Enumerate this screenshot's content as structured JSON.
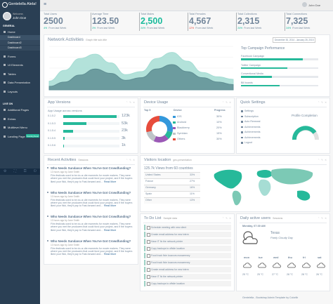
{
  "sidebar": {
    "brand": "Gentelella Alela!",
    "welcome": "Welcome,",
    "user": "John Doe",
    "badge": "Coming Soon",
    "sections": [
      {
        "title": "GENERAL",
        "items": [
          "Home",
          "Forms",
          "UI Elements",
          "Tables",
          "Data Presentation",
          "Layouts"
        ]
      },
      {
        "title": "LIVE ON",
        "items": [
          "Additional Pages",
          "Extras",
          "Multilevel Menu",
          "Landing Page"
        ]
      }
    ],
    "subitems": [
      "Dashboard",
      "Dashboard2",
      "Dashboard3"
    ]
  },
  "topbar": {
    "user": "John Doe"
  },
  "stats": [
    {
      "label": "Total Users",
      "value": "2500",
      "change": "4%",
      "note": "From last Week"
    },
    {
      "label": "Average Time",
      "value": "123.50",
      "change": "3%",
      "note": "From last Week"
    },
    {
      "label": "Total Males",
      "value": "2,500",
      "change": "34%",
      "note": "From last Week"
    },
    {
      "label": "Total Females",
      "value": "4,567",
      "change": "12%",
      "note": "From last Week"
    },
    {
      "label": "Total Collections",
      "value": "2,315",
      "change": "34%",
      "note": "From last Week"
    },
    {
      "label": "Total Connections",
      "value": "7,325",
      "change": "34%",
      "note": "From last Week"
    }
  ],
  "network": {
    "title": "Network Activities",
    "subtitle": "Graph title sub-title",
    "date_range": "December 30, 2014 - January 28, 2015",
    "chart": {
      "type": "area",
      "x": [
        0,
        1,
        2,
        3,
        4,
        5,
        6,
        7,
        8,
        9,
        10,
        11,
        12
      ],
      "xlim": [
        0,
        12
      ],
      "ylim": [
        0,
        100
      ],
      "series": [
        {
          "color": "#a6ddd4",
          "values": [
            20,
            45,
            72,
            82,
            62,
            35,
            42,
            72,
            86,
            66,
            40,
            30,
            24
          ]
        },
        {
          "color": "#5f8f94",
          "values": [
            8,
            18,
            34,
            48,
            38,
            22,
            28,
            48,
            58,
            42,
            28,
            18,
            12
          ]
        }
      ]
    },
    "campaigns": {
      "title": "Top Campaign Performance",
      "xlim": [
        0,
        100
      ],
      "color": "#26b99a",
      "items": [
        "Facebook Campaign",
        "Twitter Campaign",
        "Conventional Media",
        "Bill boards"
      ],
      "values": [
        80,
        60,
        40,
        50
      ]
    }
  },
  "app_versions": {
    "title": "App Versions",
    "subtitle": "App Usage across versions",
    "xlim": [
      0,
      130000
    ],
    "color": "#26b99a",
    "categories": [
      "0.1.5.2",
      "0.1.5.3",
      "0.1.5.4",
      "0.1.5.5",
      "0.1.5.6"
    ],
    "values": [
      123000,
      53000,
      23000,
      3000,
      1000
    ],
    "value_labels": [
      "123k",
      "53k",
      "23k",
      "3k",
      "1k"
    ]
  },
  "device_usage": {
    "title": "Device Usage",
    "headers": [
      "Top 5",
      "Device",
      "Progress"
    ],
    "chart": {
      "type": "pie",
      "categories": [
        "IOS",
        "Android",
        "Blackberry",
        "Symbian",
        "Others"
      ],
      "values": [
        30,
        10,
        20,
        15,
        30
      ],
      "value_labels": [
        "30%",
        "10%",
        "20%",
        "15%",
        "30%"
      ],
      "colors": [
        "#3498db",
        "#26b99a",
        "#9b59b6",
        "#bdc3c7",
        "#e74c3c"
      ]
    }
  },
  "quick_settings": {
    "title": "Quick Settings",
    "items": [
      "Settings",
      "Subscription",
      "Auto Renewal",
      "Achievements",
      "Achievements",
      "Achievements",
      "Logout"
    ],
    "profile": "Profile Completion"
  },
  "recent": {
    "title": "Recent Activities",
    "subtitle": "Sessions",
    "read_more": "Read More",
    "items": [
      {
        "title": "Who Needs Sundance When You've Got Crowdfunding?",
        "byline": "13 hours ago by Jane Smith",
        "body": "Film festivals used to be do-or-die moments for movie makers. They were where you met the producers that could fund your project, and if the buyers liked your flick, they'd pay to Fast-forward and..."
      },
      {
        "title": "Who Needs Sundance When You've Got Crowdfunding?",
        "byline": "13 hours ago by Jane Smith",
        "body": "Film festivals used to be do-or-die moments for movie makers. They were where you met the producers that could fund your project, and if the buyers liked your flick, they'd pay to Fast-forward and..."
      },
      {
        "title": "Who Needs Sundance When You've Got Crowdfunding?",
        "byline": "13 hours ago by Jane Smith",
        "body": "Film festivals used to be do-or-die moments for movie makers. They were where you met the producers that could fund your project, and if the buyers liked your flick, they'd pay to Fast-forward and..."
      },
      {
        "title": "Who Needs Sundance When You've Got Crowdfunding?",
        "byline": "13 hours ago by Jane Smith",
        "body": "Film festivals used to be do-or-die moments for movie makers. They were where you met the producers that could fund your project, and if the buyers liked your flick, they'd pay to Fast-forward and..."
      }
    ]
  },
  "visitors": {
    "title": "Visitors location",
    "subtitle": "geo-presentation",
    "headline": "125.7k Views from 60 countries",
    "rows": [
      [
        "United States",
        "33%"
      ],
      [
        "France",
        "27%"
      ],
      [
        "Germany",
        "16%"
      ],
      [
        "Spain",
        "11%"
      ],
      [
        "Other",
        "13%"
      ]
    ]
  },
  "todo": {
    "title": "To Do List",
    "subtitle": "Sample data",
    "items": [
      "Schedule meeting with new client",
      "Create email address for new intern",
      "Have IT fix the network printer",
      "Copy backups to offsite location",
      "Food truck fixie locavors mcsweeney",
      "Food truck fixie locavors mcsweeney",
      "Create email address for new intern",
      "Have IT fix the network printer",
      "Copy backups to offsite location"
    ]
  },
  "daily": {
    "title": "Daily active users",
    "subtitle": "Sessions",
    "datetime": "Monday, 07:30 AM",
    "place": "Texas",
    "condition": "Partly Cloudy Day",
    "days": [
      "mon",
      "tue",
      "wed",
      "thu",
      "fri",
      "sat"
    ],
    "temps": [
      "25 °C",
      "25 °C",
      "27 °C",
      "28 °C",
      "28 °C",
      "26 °C"
    ]
  },
  "footer": "Gentelella - Bootstrap Admin Template by Colorlib"
}
